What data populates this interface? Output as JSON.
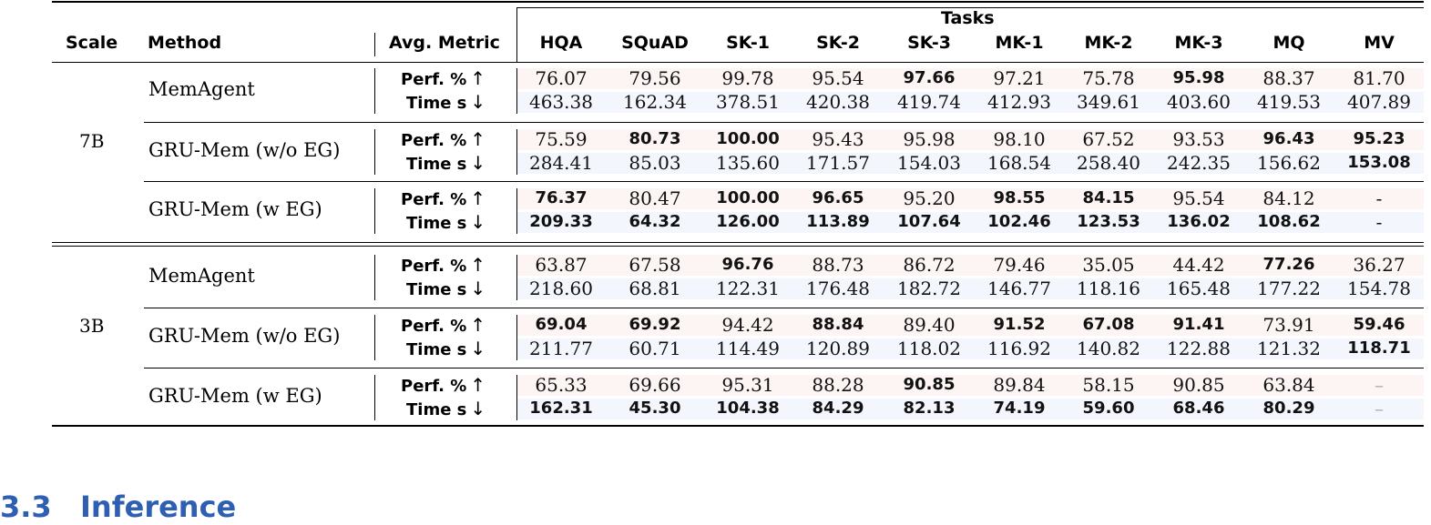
{
  "table": {
    "headers": {
      "scale": "Scale",
      "method": "Method",
      "avg_metric": "Avg. Metric",
      "tasks": "Tasks",
      "task_names": [
        "HQA",
        "SQuAD",
        "SK-1",
        "SK-2",
        "SK-3",
        "MK-1",
        "MK-2",
        "MK-3",
        "MQ",
        "MV"
      ]
    },
    "metric_labels": {
      "perf": "Perf. %",
      "perf_arrow": "↑",
      "time": "Time s",
      "time_arrow": "↓"
    },
    "scales": [
      {
        "label": "7B",
        "methods": [
          {
            "name": "MemAgent",
            "perf": [
              "76.07",
              "79.56",
              "99.78",
              "95.54",
              "97.66",
              "97.21",
              "75.78",
              "95.98",
              "88.37",
              "81.70"
            ],
            "perf_bold": [
              false,
              false,
              false,
              false,
              true,
              false,
              false,
              true,
              false,
              false
            ],
            "time": [
              "463.38",
              "162.34",
              "378.51",
              "420.38",
              "419.74",
              "412.93",
              "349.61",
              "403.60",
              "419.53",
              "407.89"
            ],
            "time_bold": [
              false,
              false,
              false,
              false,
              false,
              false,
              false,
              false,
              false,
              false
            ]
          },
          {
            "name": "GRU-Mem (w/o EG)",
            "perf": [
              "75.59",
              "80.73",
              "100.00",
              "95.43",
              "95.98",
              "98.10",
              "67.52",
              "93.53",
              "96.43",
              "95.23"
            ],
            "perf_bold": [
              false,
              true,
              true,
              false,
              false,
              false,
              false,
              false,
              true,
              true
            ],
            "time": [
              "284.41",
              "85.03",
              "135.60",
              "171.57",
              "154.03",
              "168.54",
              "258.40",
              "242.35",
              "156.62",
              "153.08"
            ],
            "time_bold": [
              false,
              false,
              false,
              false,
              false,
              false,
              false,
              false,
              false,
              true
            ]
          },
          {
            "name": "GRU-Mem (w EG)",
            "perf": [
              "76.37",
              "80.47",
              "100.00",
              "96.65",
              "95.20",
              "98.55",
              "84.15",
              "95.54",
              "84.12",
              "-"
            ],
            "perf_bold": [
              true,
              false,
              true,
              true,
              false,
              true,
              true,
              false,
              false,
              false
            ],
            "time": [
              "209.33",
              "64.32",
              "126.00",
              "113.89",
              "107.64",
              "102.46",
              "123.53",
              "136.02",
              "108.62",
              "-"
            ],
            "time_bold": [
              true,
              true,
              true,
              true,
              true,
              true,
              true,
              true,
              true,
              false
            ]
          }
        ]
      },
      {
        "label": "3B",
        "methods": [
          {
            "name": "MemAgent",
            "perf": [
              "63.87",
              "67.58",
              "96.76",
              "88.73",
              "86.72",
              "79.46",
              "35.05",
              "44.42",
              "77.26",
              "36.27"
            ],
            "perf_bold": [
              false,
              false,
              true,
              false,
              false,
              false,
              false,
              false,
              true,
              false
            ],
            "time": [
              "218.60",
              "68.81",
              "122.31",
              "176.48",
              "182.72",
              "146.77",
              "118.16",
              "165.48",
              "177.22",
              "154.78"
            ],
            "time_bold": [
              false,
              false,
              false,
              false,
              false,
              false,
              false,
              false,
              false,
              false
            ]
          },
          {
            "name": "GRU-Mem (w/o EG)",
            "perf": [
              "69.04",
              "69.92",
              "94.42",
              "88.84",
              "89.40",
              "91.52",
              "67.08",
              "91.41",
              "73.91",
              "59.46"
            ],
            "perf_bold": [
              true,
              true,
              false,
              true,
              false,
              true,
              true,
              true,
              false,
              true
            ],
            "time": [
              "211.77",
              "60.71",
              "114.49",
              "120.89",
              "118.02",
              "116.92",
              "140.82",
              "122.88",
              "121.32",
              "118.71"
            ],
            "time_bold": [
              false,
              false,
              false,
              false,
              false,
              false,
              false,
              false,
              false,
              true
            ]
          },
          {
            "name": "GRU-Mem (w EG)",
            "perf": [
              "65.33",
              "69.66",
              "95.31",
              "88.28",
              "90.85",
              "89.84",
              "58.15",
              "90.85",
              "63.84",
              "–"
            ],
            "perf_bold": [
              false,
              false,
              false,
              false,
              true,
              false,
              false,
              false,
              false,
              false
            ],
            "time": [
              "162.31",
              "45.30",
              "104.38",
              "84.29",
              "82.13",
              "74.19",
              "59.60",
              "68.46",
              "80.29",
              "–"
            ],
            "time_bold": [
              true,
              true,
              true,
              true,
              true,
              true,
              true,
              true,
              true,
              false
            ]
          }
        ]
      }
    ]
  },
  "section": {
    "number": "3.3",
    "title": "Inference"
  }
}
